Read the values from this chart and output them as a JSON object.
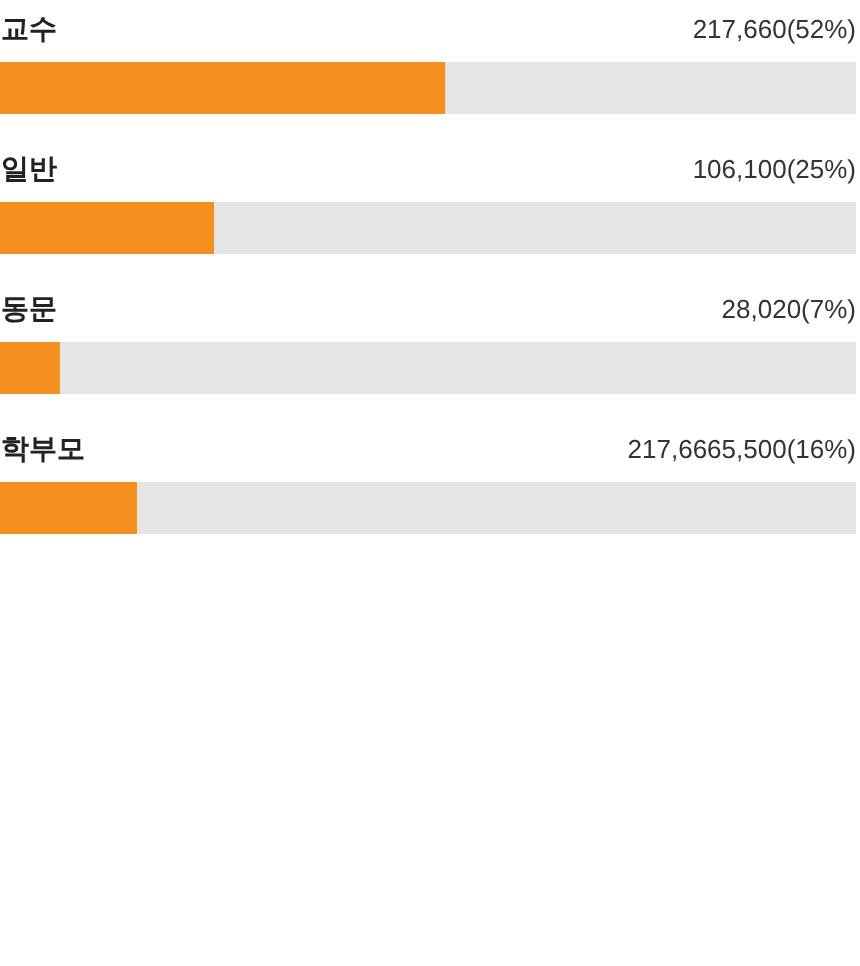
{
  "chart_data": {
    "type": "bar",
    "orientation": "horizontal",
    "categories": [
      "교수",
      "일반",
      "동문",
      "학부모"
    ],
    "series": [
      {
        "color": "#f58f20",
        "values": [
          52,
          25,
          7,
          16
        ],
        "value_labels": [
          "217,660(52%)",
          "106,100(25%)",
          "28,020(7%)",
          "217,6665,500(16%)"
        ]
      }
    ],
    "xlim": [
      0,
      100
    ],
    "tick_labels": "y"
  }
}
